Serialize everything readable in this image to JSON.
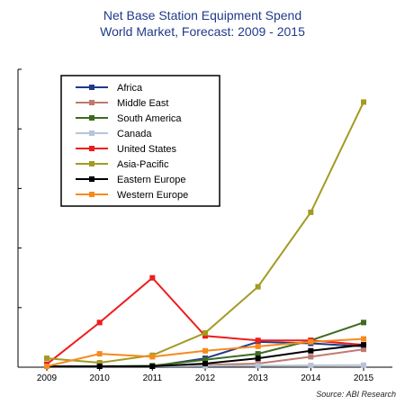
{
  "chart_data": {
    "type": "line",
    "title": "Net Base Station Equipment Spend",
    "subtitle": "World Market, Forecast: 2009 - 2015",
    "source": "Source: ABI Research",
    "x": [
      "2009",
      "2010",
      "2011",
      "2012",
      "2013",
      "2014",
      "2015"
    ],
    "ylim": [
      0,
      100
    ],
    "ytick_count": 6,
    "legend_position": "top-left",
    "series": [
      {
        "name": "Africa",
        "color": "#1f3a8a",
        "values": [
          0.3,
          0.3,
          0.3,
          3,
          8.5,
          8,
          7
        ]
      },
      {
        "name": "Middle East",
        "color": "#c07a70",
        "values": [
          0.3,
          0.3,
          0.3,
          0.8,
          1.2,
          3.5,
          6
        ]
      },
      {
        "name": "South America",
        "color": "#3e6b1f",
        "values": [
          0.3,
          0.3,
          0.5,
          2.5,
          4.5,
          9,
          15
        ]
      },
      {
        "name": "Canada",
        "color": "#b8c4d8",
        "values": [
          0.3,
          0.3,
          0.3,
          0.4,
          0.5,
          0.6,
          0.7
        ]
      },
      {
        "name": "United States",
        "color": "#ee1c1c",
        "values": [
          1,
          15,
          30,
          10.5,
          9,
          9,
          7.5
        ]
      },
      {
        "name": "Asia-Pacific",
        "color": "#a39a22",
        "values": [
          3,
          1.5,
          4,
          11.5,
          27,
          52,
          89
        ]
      },
      {
        "name": "Eastern Europe",
        "color": "#000000",
        "values": [
          0.3,
          0.3,
          0.3,
          1.2,
          3,
          5.5,
          7.5
        ]
      },
      {
        "name": "Western Europe",
        "color": "#f68a1e",
        "values": [
          0.3,
          4.5,
          3.5,
          5.5,
          7,
          8.5,
          9.5
        ]
      }
    ]
  }
}
